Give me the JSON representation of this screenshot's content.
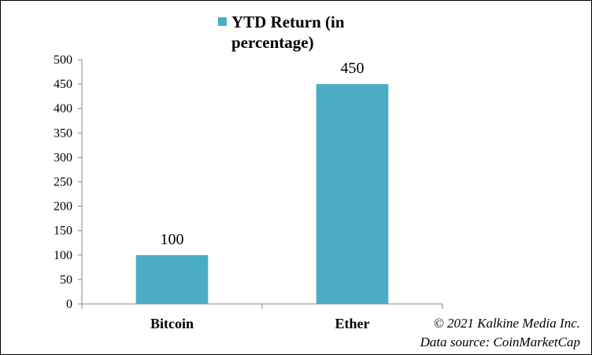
{
  "chart_data": {
    "type": "bar",
    "categories": [
      "Bitcoin",
      "Ether"
    ],
    "series": [
      {
        "name": "YTD Return (in percentage)",
        "values": [
          100,
          450
        ]
      }
    ],
    "data_labels": [
      "100",
      "450"
    ],
    "ylim": [
      0,
      500
    ],
    "yticks": [
      "0",
      "50",
      "100",
      "150",
      "200",
      "250",
      "300",
      "350",
      "400",
      "450",
      "500"
    ],
    "ytick_step": 50,
    "grid": false,
    "legend": "top",
    "bar_color": "#4bacc6"
  },
  "legend": {
    "line1": "YTD Return (in",
    "line2": "percentage)"
  },
  "footer": {
    "copyright": "© 2021 Kalkine Media Inc.",
    "source": "Data source:  CoinMarketCap"
  }
}
